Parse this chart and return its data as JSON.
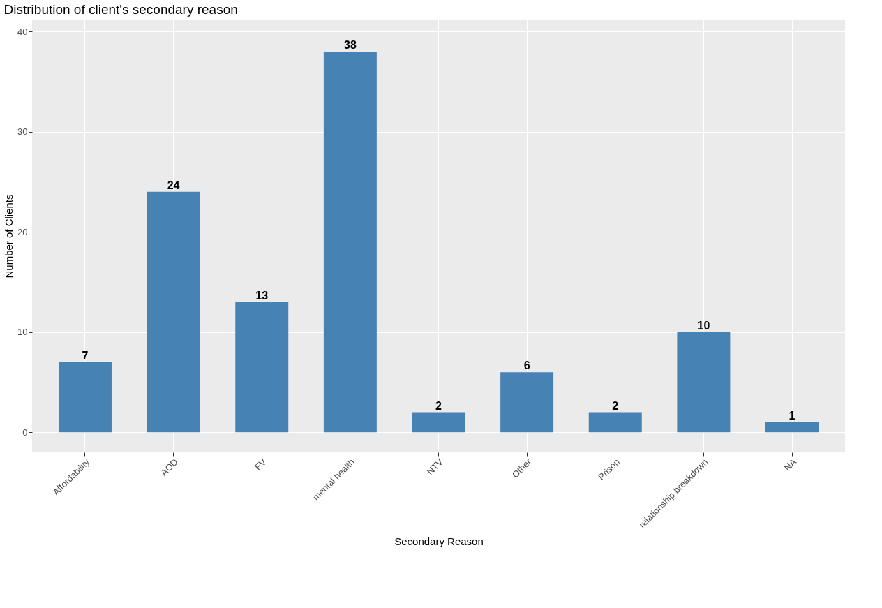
{
  "chart_data": {
    "type": "bar",
    "title": "Distribution of client's secondary reason",
    "xlabel": "Secondary Reason",
    "ylabel": "Number of Clients",
    "categories": [
      "Affordability",
      "AOD",
      "FV",
      "mental health",
      "NTV",
      "Other",
      "Prison",
      "relationship breakdown",
      "NA"
    ],
    "values": [
      7,
      24,
      13,
      38,
      2,
      6,
      2,
      10,
      1
    ],
    "color": "#4682b4",
    "ylim": [
      -2,
      41.2
    ],
    "yticks": [
      0,
      10,
      20,
      30,
      40
    ],
    "grid": true,
    "data_labels": true
  }
}
